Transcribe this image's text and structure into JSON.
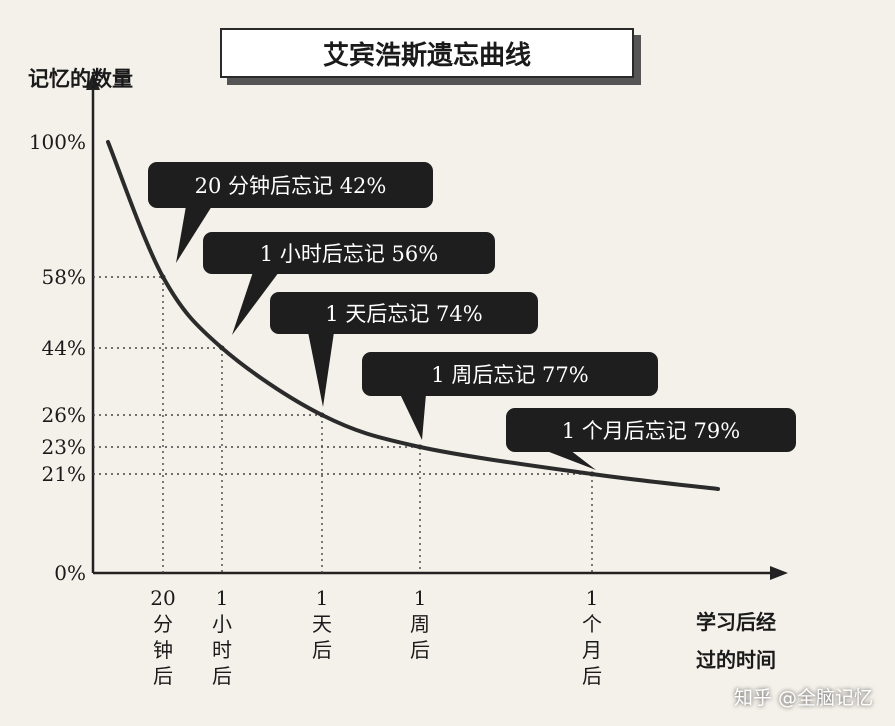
{
  "title": "艾宾浩斯遗忘曲线",
  "watermark": "知乎 @全脑记忆",
  "chart_data": {
    "type": "line",
    "title": "艾宾浩斯遗忘曲线",
    "ylabel": "记忆的数量",
    "xlabel": "学习后经过的时间",
    "xlabel_lines": [
      "学习后经",
      "过的时间"
    ],
    "yticks": [
      "100%",
      "58%",
      "44%",
      "26%",
      "23%",
      "21%",
      "0%"
    ],
    "ytick_values": [
      100,
      58,
      44,
      26,
      23,
      21,
      0
    ],
    "x": [
      "0",
      "20分钟",
      "1小时",
      "1天",
      "1周",
      "1个月"
    ],
    "y": [
      100,
      58,
      44,
      26,
      23,
      21
    ],
    "xticks": [
      {
        "label": "20分钟后",
        "lines": [
          "20",
          "分",
          "钟",
          "后"
        ]
      },
      {
        "label": "1小时后",
        "lines": [
          "1",
          "小",
          "时",
          "后"
        ]
      },
      {
        "label": "1天后",
        "lines": [
          "1",
          "天",
          "后"
        ]
      },
      {
        "label": "1周后",
        "lines": [
          "1",
          "周",
          "后"
        ]
      },
      {
        "label": "1个月后",
        "lines": [
          "1",
          "个",
          "月",
          "后"
        ]
      }
    ],
    "annotations": [
      "20 分钟后忘记 42%",
      "1 小时后忘记 56%",
      "1 天后忘记 74%",
      "1 周后忘记 77%",
      "1 个月后忘记 79%"
    ],
    "grid": "dotted guide lines at marked points",
    "colors": {
      "line": "#2b2b2b",
      "callout": "#1e1e1e",
      "callout_text": "#ffffff"
    }
  }
}
